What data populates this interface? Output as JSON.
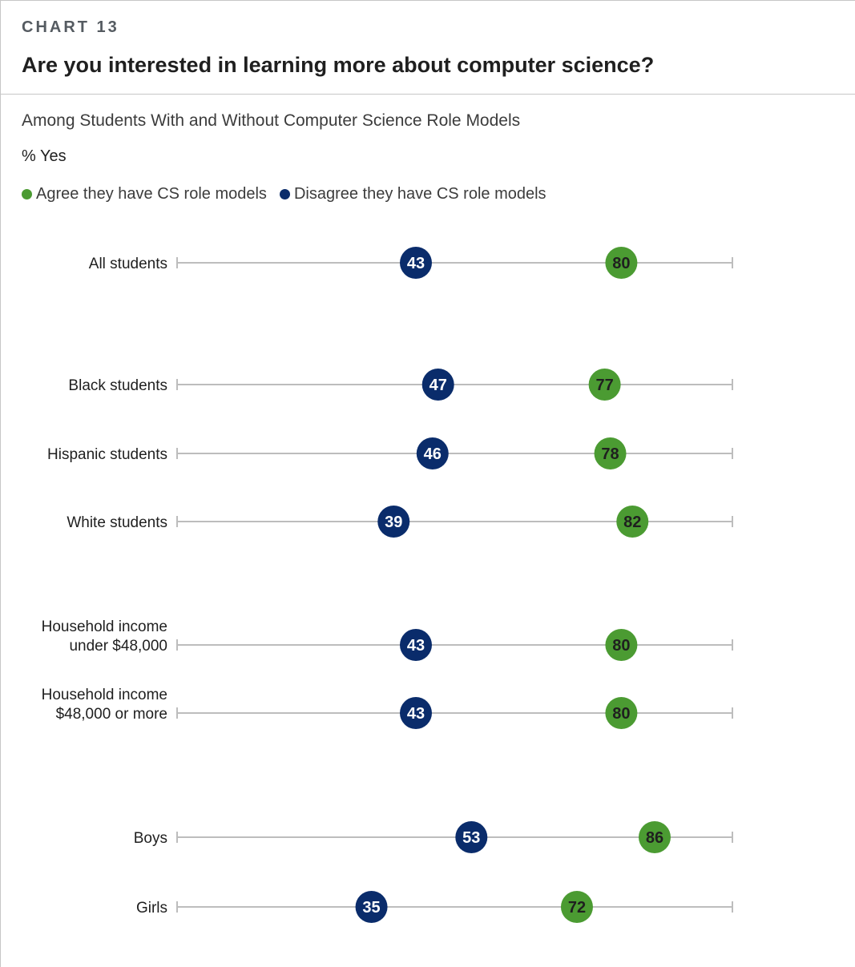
{
  "header": {
    "eyebrow": "CHART 13",
    "title": "Are you interested in learning more about computer science?"
  },
  "subtitle": "Among Students With and Without Computer Science Role Models",
  "unit_label": "% Yes",
  "legend": [
    {
      "label": "Agree they have CS role models",
      "color": "#4b9b32"
    },
    {
      "label": "Disagree they have CS role models",
      "color": "#0a2c6b"
    }
  ],
  "colors": {
    "agree": "#4b9b32",
    "disagree": "#0a2c6b",
    "agree_text": "#1f1f1f",
    "disagree_text": "#ffffff",
    "track": "#bdbdbd"
  },
  "chart_data": {
    "type": "dot-plot",
    "xlim": [
      0,
      100
    ],
    "categories": [
      [
        "All students"
      ],
      [
        "Black students"
      ],
      [
        "Hispanic students"
      ],
      [
        "White students"
      ],
      [
        "Household income",
        "under $48,000"
      ],
      [
        "Household income",
        "$48,000 or more"
      ],
      [
        "Boys"
      ],
      [
        "Girls"
      ]
    ],
    "series": [
      {
        "name": "Agree they have CS role models",
        "values": [
          80,
          77,
          78,
          82,
          80,
          80,
          86,
          72
        ]
      },
      {
        "name": "Disagree they have CS role models",
        "values": [
          43,
          47,
          46,
          39,
          43,
          43,
          53,
          35
        ]
      }
    ]
  }
}
